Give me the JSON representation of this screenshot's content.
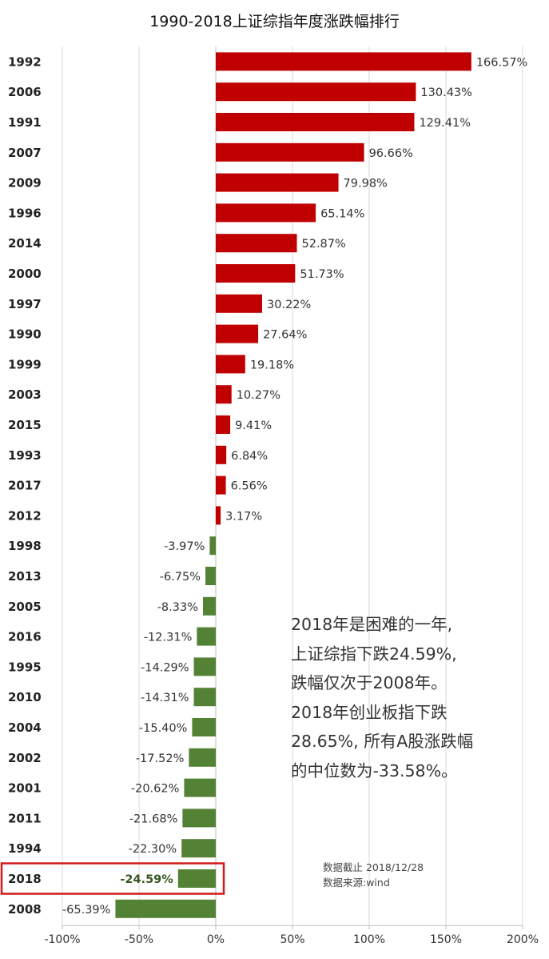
{
  "chart_data": {
    "type": "bar",
    "orientation": "horizontal",
    "title": "1990-2018上证综指年度涨跌幅排行",
    "categories": [
      "1992",
      "2006",
      "1991",
      "2007",
      "2009",
      "1996",
      "2014",
      "2000",
      "1997",
      "1990",
      "1999",
      "2003",
      "2015",
      "1993",
      "2017",
      "2012",
      "1998",
      "2013",
      "2005",
      "2016",
      "1995",
      "2010",
      "2004",
      "2002",
      "2001",
      "2011",
      "1994",
      "2018",
      "2008"
    ],
    "values": [
      166.57,
      130.43,
      129.41,
      96.66,
      79.98,
      65.14,
      52.87,
      51.73,
      30.22,
      27.64,
      19.18,
      10.27,
      9.41,
      6.84,
      6.56,
      3.17,
      -3.97,
      -6.75,
      -8.33,
      -12.31,
      -14.29,
      -14.31,
      -15.4,
      -17.52,
      -20.62,
      -21.68,
      -22.3,
      -24.59,
      -65.39
    ],
    "labels": [
      "166.57%",
      "130.43%",
      "129.41%",
      "96.66%",
      "79.98%",
      "65.14%",
      "52.87%",
      "51.73%",
      "30.22%",
      "27.64%",
      "19.18%",
      "10.27%",
      "9.41%",
      "6.84%",
      "6.56%",
      "3.17%",
      "-3.97%",
      "-6.75%",
      "-8.33%",
      "-12.31%",
      "-14.29%",
      "-14.31%",
      "-15.40%",
      "-17.52%",
      "-20.62%",
      "-21.68%",
      "-22.30%",
      "-24.59%",
      "-65.39%"
    ],
    "highlight": "2018",
    "xlim": [
      -100,
      200
    ],
    "xticks": [
      -100,
      -50,
      0,
      50,
      100,
      150,
      200
    ],
    "xtick_labels": [
      "-100%",
      "-50%",
      "0%",
      "50%",
      "100%",
      "150%",
      "200%"
    ],
    "grid": "vertical",
    "colors": {
      "positive": "#c00000",
      "negative": "#548235",
      "highlight_border": "#d11a1a",
      "highlight_label": "#375623"
    }
  },
  "annotation": {
    "lines": [
      "2018年是困难的一年,",
      "上证综指下跌24.59%,",
      "跌幅仅次于2008年。",
      "2018年创业板指下跌",
      "28.65%, 所有A股涨跌幅",
      "的中位数为-33.58%。"
    ]
  },
  "source": {
    "cutoff": "数据截止 2018/12/28",
    "origin": "数据来源:wind"
  }
}
